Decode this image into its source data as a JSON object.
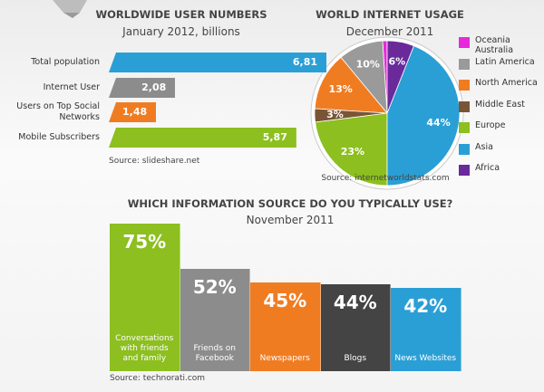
{
  "chart_data": [
    {
      "type": "hbar",
      "title": "WORLDWIDE USER NUMBERS",
      "subtitle": "January 2012, billions",
      "categories": [
        "Total population",
        "Internet User",
        "Users on Top Social Networks",
        "Mobile Subscribers"
      ],
      "values": [
        6.81,
        2.08,
        1.48,
        5.87
      ],
      "value_labels": [
        "6,81",
        "2,08",
        "1,48",
        "5,87"
      ],
      "colors": [
        "#2a9fd6",
        "#8c8c8c",
        "#f07c22",
        "#8cbf1f"
      ],
      "source": "Source:  slideshare.net"
    },
    {
      "type": "pie",
      "title": "WORLD INTERNET USAGE",
      "subtitle": "December 2011",
      "categories": [
        "Oceania Australia",
        "Latin America",
        "North America",
        "Middle East",
        "Europe",
        "Asia",
        "Africa"
      ],
      "values": [
        1,
        10,
        13,
        3,
        23,
        44,
        6
      ],
      "value_labels": [
        null,
        "10%",
        "13%",
        "3%",
        "23%",
        "44%",
        "6%"
      ],
      "colors": [
        "#e62ad9",
        "#9a9a9a",
        "#f07c22",
        "#7a5535",
        "#8cbf1f",
        "#2a9fd6",
        "#6a2a9a"
      ],
      "source": "Source: internetworldstats.com"
    },
    {
      "type": "bar",
      "title": "WHICH INFORMATION SOURCE DO YOU TYPICALLY USE?",
      "subtitle": "November 2011",
      "categories": [
        "Conversations with friends and family",
        "Friends on Facebook",
        "Newspapers",
        "Blogs",
        "News Websites"
      ],
      "values": [
        75,
        52,
        45,
        44,
        42
      ],
      "value_labels": [
        "75%",
        "52%",
        "45%",
        "44%",
        "42%"
      ],
      "colors": [
        "#8cbf1f",
        "#8c8c8c",
        "#f07c22",
        "#444444",
        "#2a9fd6"
      ],
      "source": "Source: technorati.com"
    }
  ]
}
